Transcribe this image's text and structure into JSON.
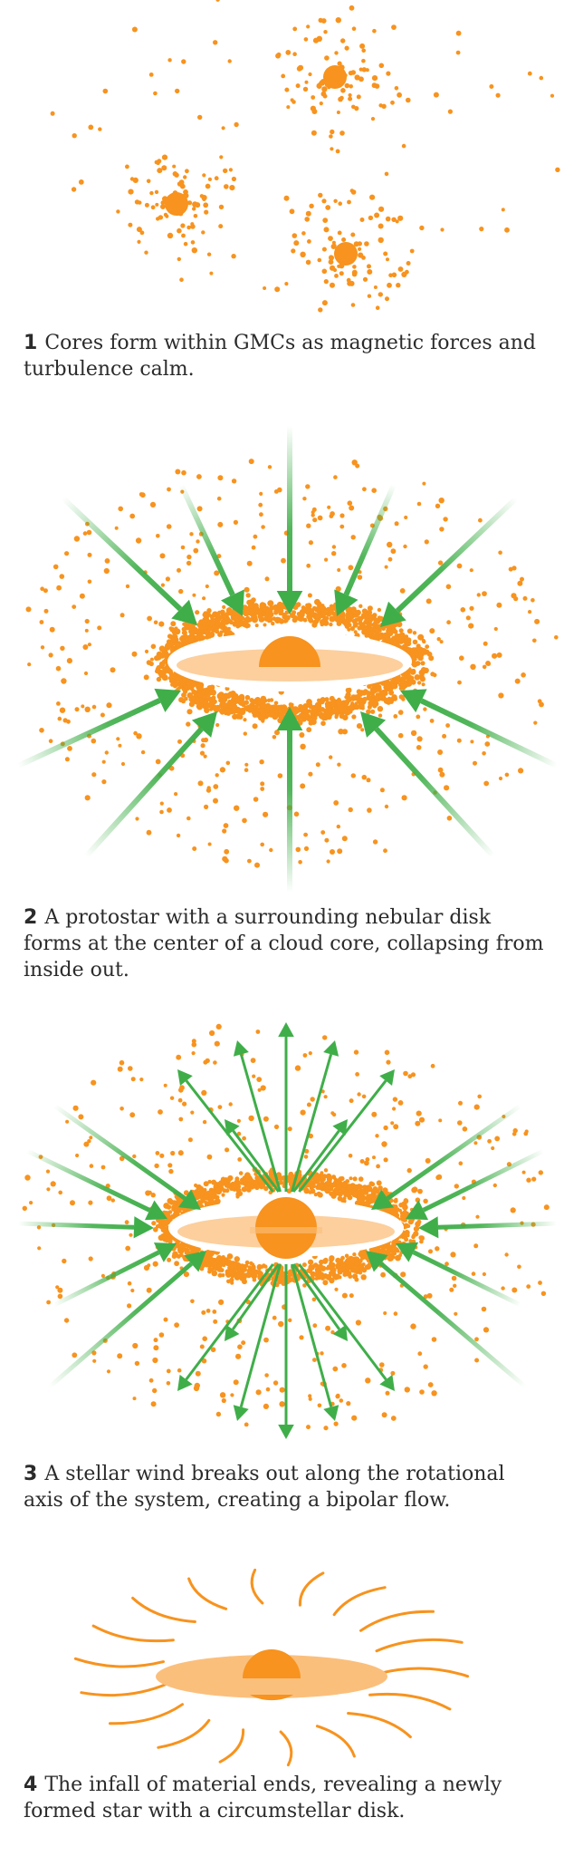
{
  "colors": {
    "dust": "#f7931e",
    "disk_light": "#fbbf7c",
    "star": "#f7931e",
    "arrow": "#3fae49",
    "arrow_fade": "#ffffff",
    "text": "#2b2b2b"
  },
  "steps": [
    {
      "number": "1",
      "text": "Cores form within GMCs as magnetic forces and turbulence calm."
    },
    {
      "number": "2",
      "text": "A protostar with a surrounding nebular disk forms at the center of a cloud core, collapsing from inside out."
    },
    {
      "number": "3",
      "text": "A stellar wind breaks out along the rotational axis of the system, creating a bipolar flow."
    },
    {
      "number": "4",
      "text": "The infall of material ends, revealing a newly formed star with a circumstellar disk."
    }
  ]
}
